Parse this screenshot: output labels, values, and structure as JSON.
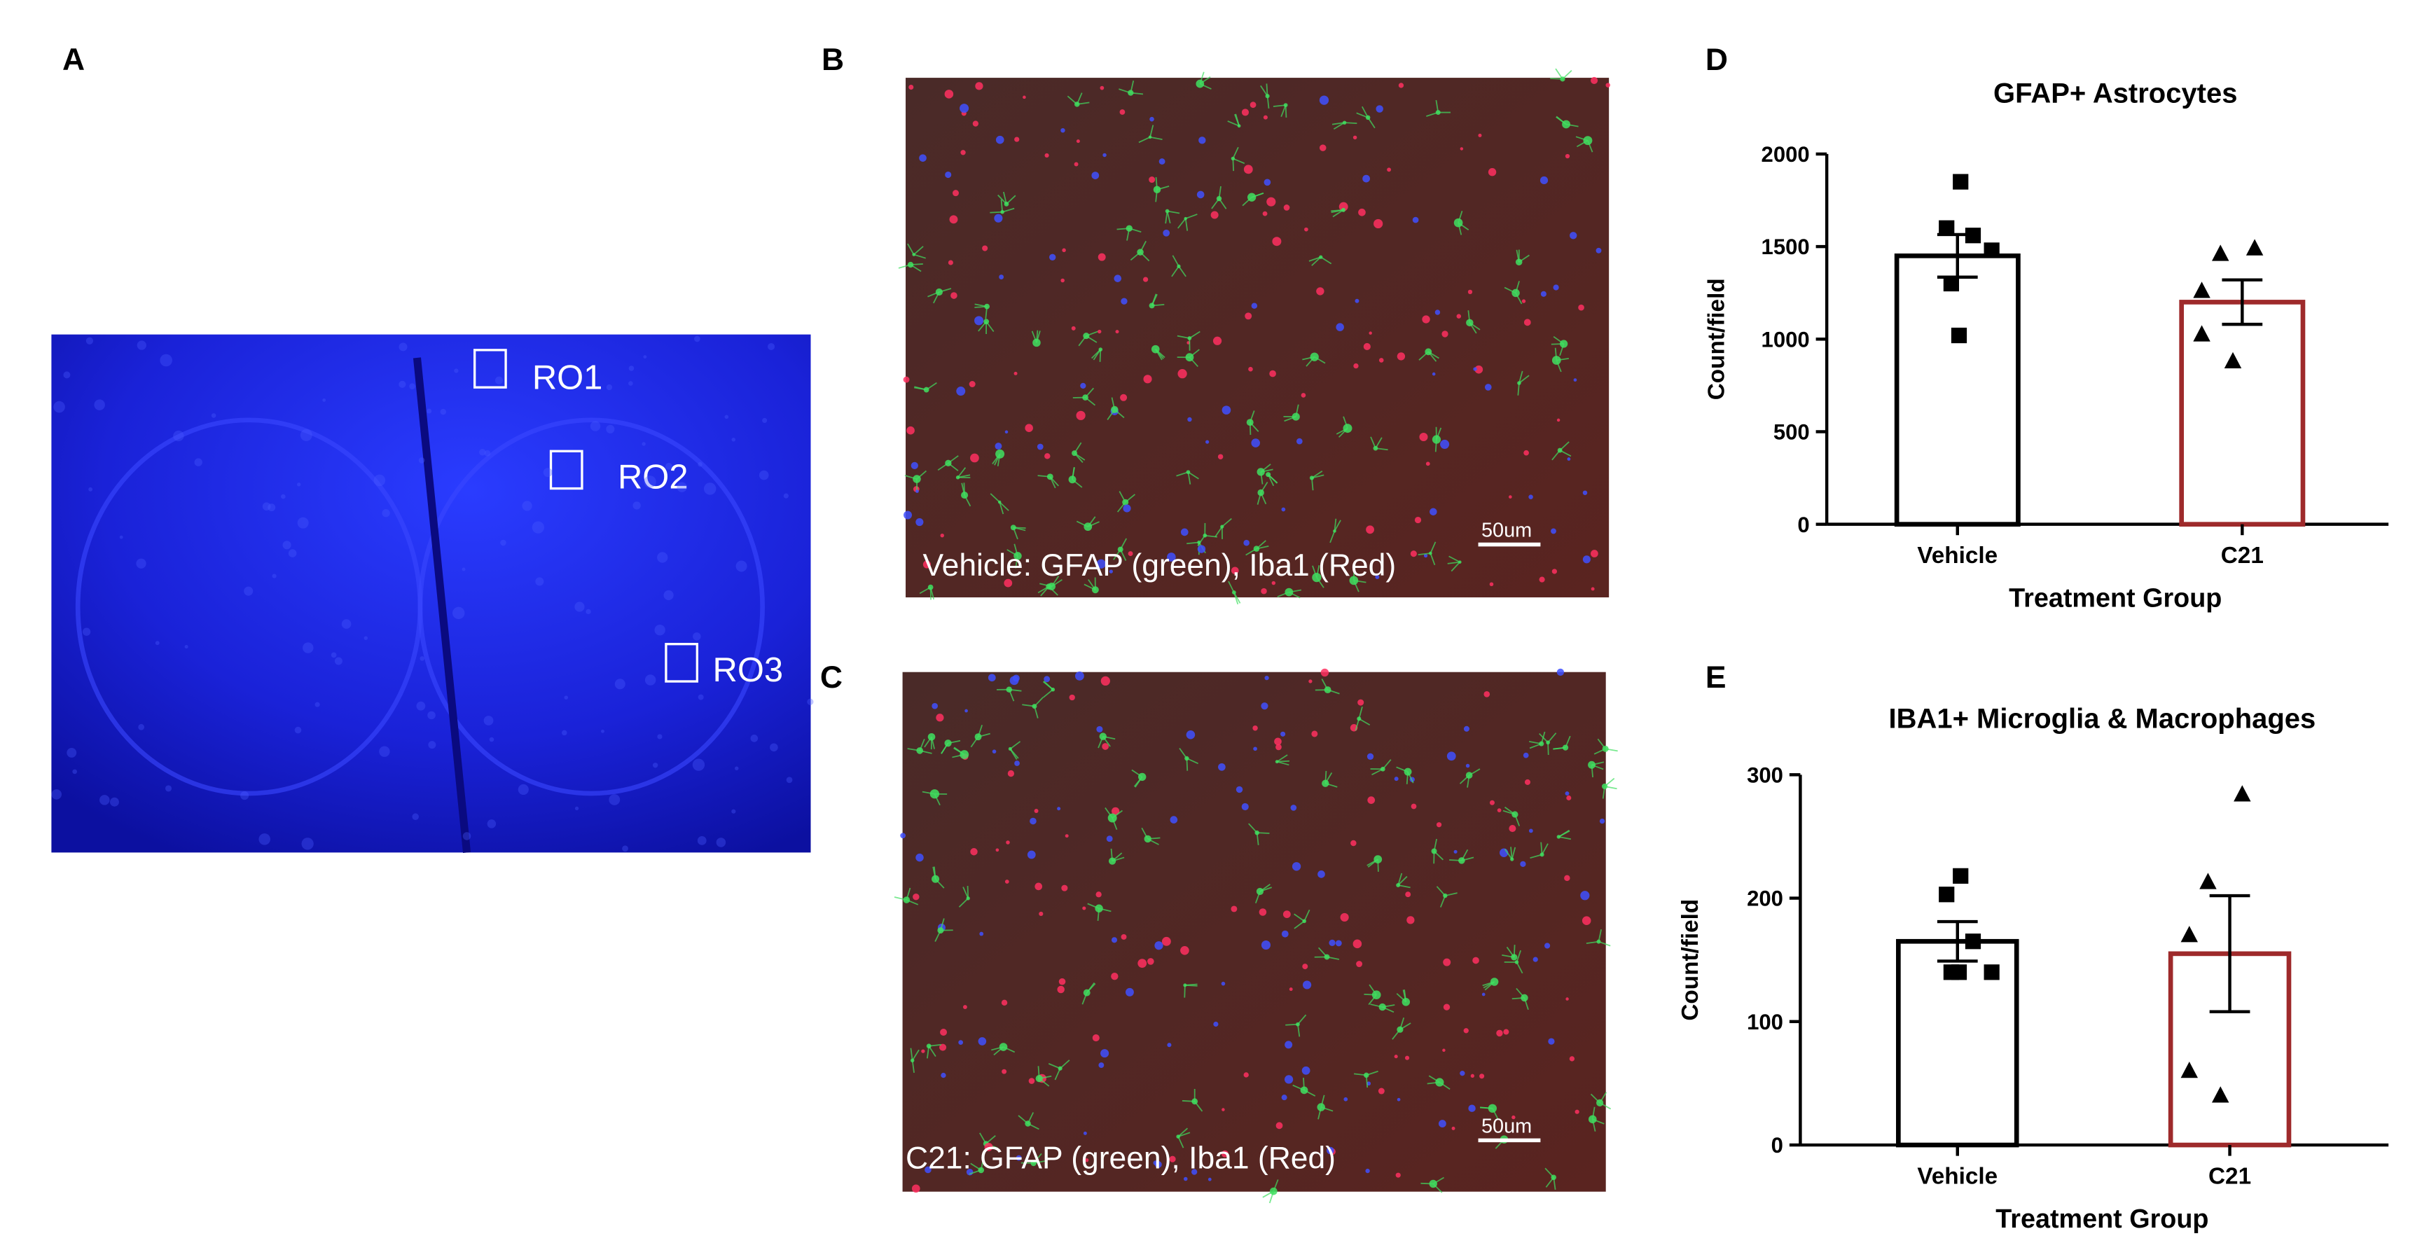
{
  "panels": [
    {
      "label": "A",
      "annotations": [
        "RO1",
        "RO2",
        "RO3"
      ]
    },
    {
      "label": "B",
      "caption": "Vehicle: GFAP (green), Iba1 (Red)",
      "scale_bar": "50um"
    },
    {
      "label": "C",
      "caption": "C21: GFAP (green), Iba1 (Red)",
      "scale_bar": "50um"
    },
    {
      "label": "D"
    },
    {
      "label": "E"
    }
  ],
  "chart_data": [
    {
      "type": "bar",
      "title": "GFAP+ Astrocytes",
      "ylabel": "Count/field",
      "xlabel": "Treatment Group",
      "categories": [
        "Vehicle",
        "C21"
      ],
      "values": [
        1450,
        1200
      ],
      "errors": [
        115,
        120
      ],
      "points": [
        [
          1850,
          1600,
          1560,
          1480,
          1300,
          1020
        ],
        [
          1490,
          1460,
          1260,
          1025,
          880
        ]
      ],
      "markers": [
        "square",
        "triangle"
      ],
      "colors": [
        "#000000",
        "#9e2a2b"
      ],
      "ylim": [
        0,
        2000
      ],
      "yticks": [
        0,
        500,
        1000,
        1500,
        2000
      ]
    },
    {
      "type": "bar",
      "title": "IBA1+ Microglia & Macrophages",
      "ylabel": "Count/field",
      "xlabel": "Treatment Group",
      "categories": [
        "Vehicle",
        "C21"
      ],
      "values": [
        165,
        155
      ],
      "errors": [
        16,
        47
      ],
      "points": [
        [
          218,
          203,
          165,
          140,
          140,
          140
        ],
        [
          284,
          213,
          170,
          60,
          40
        ]
      ],
      "markers": [
        "square",
        "triangle"
      ],
      "colors": [
        "#000000",
        "#9e2a2b"
      ],
      "ylim": [
        0,
        300
      ],
      "yticks": [
        0,
        100,
        200,
        300
      ]
    }
  ]
}
